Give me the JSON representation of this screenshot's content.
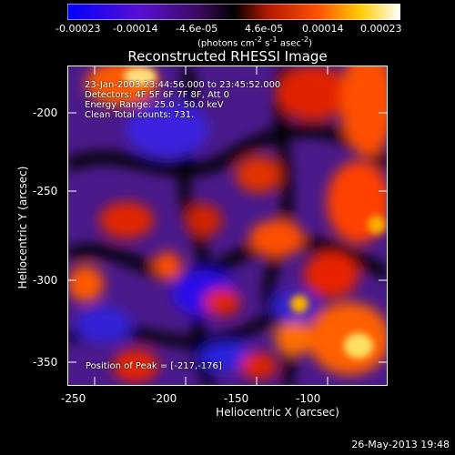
{
  "colorbar": {
    "tick_labels": [
      "-0.00023",
      "-0.00014",
      "-4.6e-05",
      "4.6e-05",
      "0.00014",
      "0.00023"
    ],
    "units_html": "(photons cm<sup>-2</sup> s<sup>-1</sup> asec<sup>-2</sup>)",
    "colors": [
      "#0000ff",
      "#7a00c8",
      "#000000",
      "#c81e00",
      "#ff8c00",
      "#ffff7a",
      "#ffffff"
    ]
  },
  "title": "Reconstructed RHESSI Image",
  "info": {
    "line1": "23-Jan-2003 23:44:56.000 to 23:45:52.000",
    "line2": "Detectors: 4F 5F 6F 7F 8F, Att 0",
    "line3": "Energy Range: 25.0 - 50.0 keV",
    "line4": "Clean     Total counts: 731."
  },
  "peak_text": "Position of Peak = [-217,-176]",
  "x_axis": {
    "title": "Heliocentric X (arcsec)",
    "ticks": [
      "-250",
      "-200",
      "-150",
      "-100"
    ]
  },
  "y_axis": {
    "title": "Heliocentric Y (arcsec)",
    "ticks": [
      "-200",
      "-250",
      "-300",
      "-350"
    ]
  },
  "timestamp": "26-May-2013 19:48"
}
